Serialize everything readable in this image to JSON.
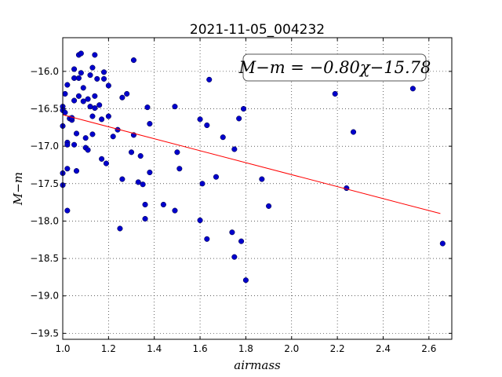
{
  "chart_data": {
    "type": "scatter",
    "title": "2021-11-05_004232",
    "xlabel": "airmass",
    "ylabel": "M−m",
    "xlim": [
      1.0,
      2.7
    ],
    "ylim": [
      -15.55,
      -19.58
    ],
    "y_inverted": true,
    "grid": true,
    "grid_style": "dotted",
    "xticks": [
      1.0,
      1.2,
      1.4,
      1.6,
      1.8,
      2.0,
      2.2,
      2.4,
      2.6
    ],
    "xtick_labels": [
      "1.0",
      "1.2",
      "1.4",
      "1.6",
      "1.8",
      "2.0",
      "2.2",
      "2.4",
      "2.6"
    ],
    "yticks": [
      -16.0,
      -16.5,
      -17.0,
      -17.5,
      -18.0,
      -18.5,
      -19.0,
      -19.5
    ],
    "ytick_labels": [
      "−16.0",
      "−16.5",
      "−17.0",
      "−17.5",
      "−18.0",
      "−18.5",
      "−19.0",
      "−19.5"
    ],
    "fit_annotation": "M−m = −0.80χ−15.78",
    "fit_line": {
      "slope": -0.8,
      "intercept": -15.78,
      "x_range": [
        1.0,
        2.65
      ]
    },
    "colors": {
      "points": "#0000cc",
      "fit_line": "#ff0000"
    },
    "series": [
      {
        "points": [
          [
            1.0,
            -16.47
          ],
          [
            1.0,
            -16.52
          ],
          [
            1.0,
            -16.73
          ],
          [
            1.0,
            -17.36
          ],
          [
            1.0,
            -17.52
          ],
          [
            1.01,
            -16.3
          ],
          [
            1.01,
            -16.55
          ],
          [
            1.02,
            -16.18
          ],
          [
            1.02,
            -16.95
          ],
          [
            1.02,
            -16.98
          ],
          [
            1.02,
            -17.3
          ],
          [
            1.02,
            -17.86
          ],
          [
            1.03,
            -16.63
          ],
          [
            1.04,
            -16.65
          ],
          [
            1.04,
            -16.62
          ],
          [
            1.05,
            -15.97
          ],
          [
            1.05,
            -16.09
          ],
          [
            1.05,
            -16.39
          ],
          [
            1.05,
            -16.98
          ],
          [
            1.06,
            -16.83
          ],
          [
            1.06,
            -17.33
          ],
          [
            1.07,
            -15.78
          ],
          [
            1.07,
            -16.09
          ],
          [
            1.07,
            -16.33
          ],
          [
            1.08,
            -15.76
          ],
          [
            1.08,
            -16.02
          ],
          [
            1.09,
            -16.22
          ],
          [
            1.09,
            -16.4
          ],
          [
            1.1,
            -16.89
          ],
          [
            1.1,
            -17.02
          ],
          [
            1.11,
            -17.05
          ],
          [
            1.11,
            -16.37
          ],
          [
            1.12,
            -16.05
          ],
          [
            1.12,
            -16.47
          ],
          [
            1.13,
            -16.84
          ],
          [
            1.13,
            -15.95
          ],
          [
            1.13,
            -16.6
          ],
          [
            1.14,
            -16.49
          ],
          [
            1.14,
            -16.33
          ],
          [
            1.14,
            -15.78
          ],
          [
            1.15,
            -16.1
          ],
          [
            1.16,
            -16.45
          ],
          [
            1.17,
            -16.64
          ],
          [
            1.17,
            -17.17
          ],
          [
            1.18,
            -16.01
          ],
          [
            1.18,
            -16.1
          ],
          [
            1.19,
            -17.23
          ],
          [
            1.2,
            -16.19
          ],
          [
            1.2,
            -16.6
          ],
          [
            1.22,
            -16.87
          ],
          [
            1.24,
            -16.78
          ],
          [
            1.25,
            -18.1
          ],
          [
            1.26,
            -17.44
          ],
          [
            1.26,
            -16.35
          ],
          [
            1.28,
            -16.3
          ],
          [
            1.3,
            -17.08
          ],
          [
            1.31,
            -15.85
          ],
          [
            1.31,
            -16.85
          ],
          [
            1.33,
            -17.48
          ],
          [
            1.34,
            -17.13
          ],
          [
            1.35,
            -17.51
          ],
          [
            1.36,
            -17.78
          ],
          [
            1.36,
            -17.97
          ],
          [
            1.37,
            -16.48
          ],
          [
            1.38,
            -17.35
          ],
          [
            1.38,
            -16.7
          ],
          [
            1.44,
            -17.78
          ],
          [
            1.49,
            -16.47
          ],
          [
            1.49,
            -17.86
          ],
          [
            1.5,
            -17.08
          ],
          [
            1.51,
            -17.3
          ],
          [
            1.6,
            -16.64
          ],
          [
            1.6,
            -17.99
          ],
          [
            1.61,
            -17.5
          ],
          [
            1.63,
            -16.72
          ],
          [
            1.63,
            -18.24
          ],
          [
            1.64,
            -16.11
          ],
          [
            1.67,
            -17.41
          ],
          [
            1.7,
            -16.88
          ],
          [
            1.74,
            -18.15
          ],
          [
            1.75,
            -18.48
          ],
          [
            1.75,
            -17.04
          ],
          [
            1.77,
            -16.63
          ],
          [
            1.78,
            -18.27
          ],
          [
            1.79,
            -16.5
          ],
          [
            1.8,
            -18.79
          ],
          [
            1.87,
            -17.44
          ],
          [
            1.9,
            -17.8
          ],
          [
            2.19,
            -16.3
          ],
          [
            2.24,
            -17.56
          ],
          [
            2.27,
            -16.81
          ],
          [
            2.53,
            -16.23
          ],
          [
            2.66,
            -18.3
          ]
        ]
      }
    ]
  }
}
